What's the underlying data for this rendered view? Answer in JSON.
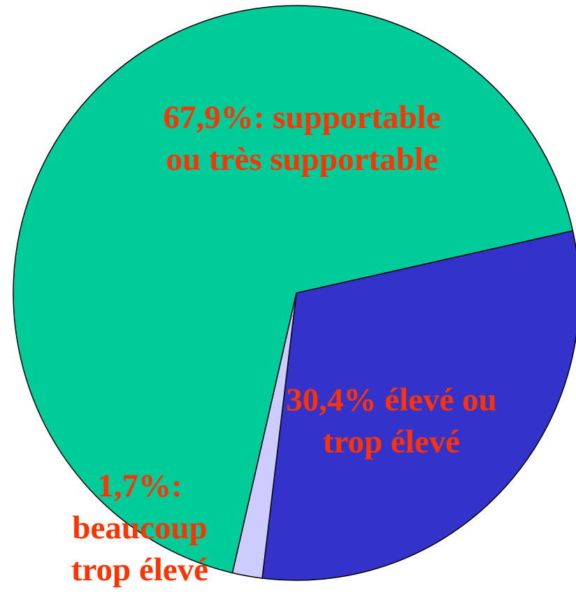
{
  "chart_data": {
    "type": "pie",
    "title": "",
    "slices": [
      {
        "label_lines": [
          "67,9%: supportable",
          "ou très supportable"
        ],
        "value": 67.9,
        "color": "#00CC99"
      },
      {
        "label_lines": [
          "30,4% élevé ou",
          "trop élevé"
        ],
        "value": 30.4,
        "color": "#3333CC"
      },
      {
        "label_lines": [
          "1,7%:",
          "beaucoup",
          "trop élevé"
        ],
        "value": 1.7,
        "color": "#CCCCFF"
      }
    ],
    "label_color": "#FF3300",
    "outline_color": "#000000"
  }
}
